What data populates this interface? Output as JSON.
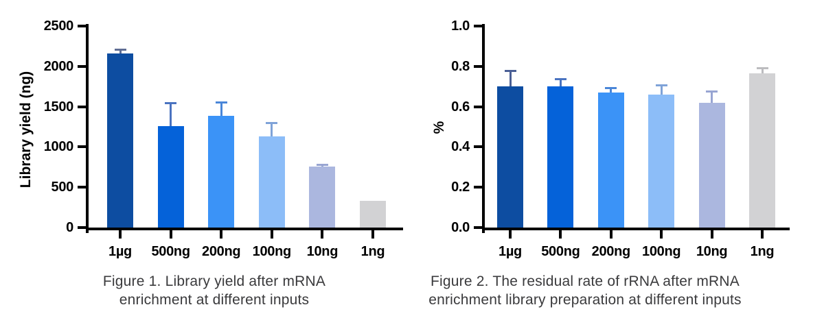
{
  "page": {
    "background": "#ffffff",
    "axis_color": "#000000",
    "caption_color": "#3a3a3c"
  },
  "chart_data": [
    {
      "type": "bar",
      "caption_line1": "Figure 1. Library yield after mRNA",
      "caption_line2": "enrichment at different inputs",
      "ylabel": "Library yield (ng)",
      "xlabel": "",
      "categories": [
        "1µg",
        "500ng",
        "200ng",
        "100ng",
        "10ng",
        "1ng"
      ],
      "values": [
        2160,
        1255,
        1390,
        1135,
        760,
        330
      ],
      "errors_plus": [
        40,
        280,
        155,
        160,
        15,
        0
      ],
      "bar_colors": [
        "#0d4da1",
        "#0562d9",
        "#3b93f7",
        "#8cbdf8",
        "#abb7df",
        "#d2d2d4"
      ],
      "error_colors": [
        "#5f6d94",
        "#4a73c0",
        "#4a86d8",
        "#7fa3d8",
        "#98a5d2",
        "#bcbcbf"
      ],
      "ylim": [
        0,
        2500
      ],
      "yticks": [
        0,
        500,
        1000,
        1500,
        2000,
        2500
      ],
      "ytick_labels": [
        "0",
        "500",
        "1000",
        "1500",
        "2000",
        "2500"
      ],
      "grid": false,
      "legend": null
    },
    {
      "type": "bar",
      "caption_line1": "Figure 2. The residual rate of rRNA after mRNA",
      "caption_line2": "enrichment library preparation at different inputs",
      "ylabel": "%",
      "xlabel": "",
      "categories": [
        "1µg",
        "500ng",
        "200ng",
        "100ng",
        "10ng",
        "1ng"
      ],
      "values": [
        0.7,
        0.7,
        0.67,
        0.66,
        0.62,
        0.765
      ],
      "errors_plus": [
        0.075,
        0.035,
        0.02,
        0.045,
        0.055,
        0.025
      ],
      "bar_colors": [
        "#0d4da1",
        "#0562d9",
        "#3b93f7",
        "#8cbdf8",
        "#abb7df",
        "#d2d2d4"
      ],
      "error_colors": [
        "#4a5f95",
        "#4a73c0",
        "#4a86d8",
        "#7fa3d8",
        "#98a5d2",
        "#bcbcbf"
      ],
      "ylim": [
        0,
        1.0
      ],
      "yticks": [
        0.0,
        0.2,
        0.4,
        0.6,
        0.8,
        1.0
      ],
      "ytick_labels": [
        "0.0",
        "0.2",
        "0.4",
        "0.6",
        "0.8",
        "1.0"
      ],
      "grid": false,
      "legend": null
    }
  ]
}
